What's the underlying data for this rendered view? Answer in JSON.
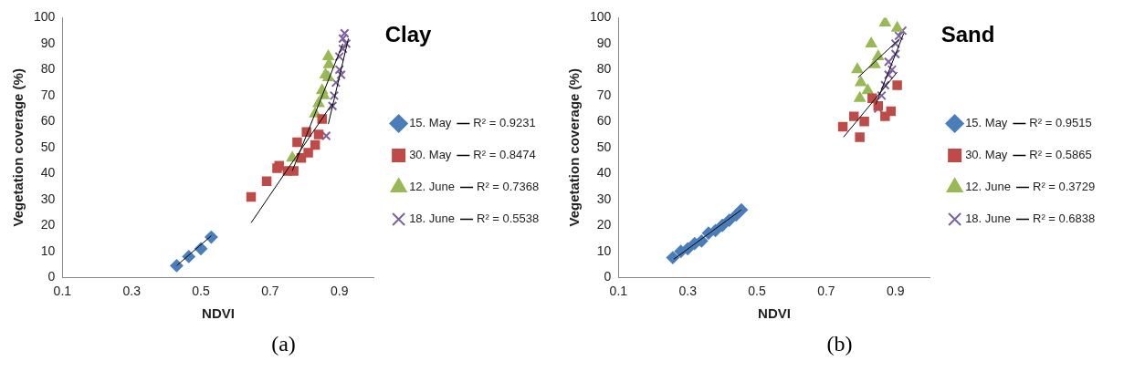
{
  "chart_data": [
    {
      "type": "scatter",
      "title": "Clay",
      "xlabel": "NDVI",
      "ylabel": "Vegetation coverage (%)",
      "xlim": [
        0.1,
        1.0
      ],
      "xticks": [
        0.1,
        0.3,
        0.5,
        0.7,
        0.9
      ],
      "ylim": [
        0,
        100
      ],
      "yticks": [
        0,
        10,
        20,
        30,
        40,
        50,
        60,
        70,
        80,
        90,
        100
      ],
      "grid": false,
      "legend": "right",
      "annotations": [
        "(a)"
      ],
      "series": [
        {
          "name": "15. May",
          "color": "#4a7ebb",
          "marker": "diamond",
          "x": [
            0.43,
            0.465,
            0.5,
            0.53
          ],
          "values": [
            4.5,
            8,
            11,
            15.5
          ]
        },
        {
          "name": "30. May",
          "color": "#be4b48",
          "marker": "square",
          "x": [
            0.645,
            0.69,
            0.72,
            0.726,
            0.75,
            0.768,
            0.778,
            0.79,
            0.805,
            0.81,
            0.83,
            0.84,
            0.85
          ],
          "values": [
            31,
            37,
            42,
            43,
            41,
            41,
            52,
            46,
            56,
            48,
            51,
            55,
            61
          ]
        },
        {
          "name": "12. June",
          "color": "#98b954",
          "marker": "triangle",
          "x": [
            0.764,
            0.83,
            0.84,
            0.85,
            0.855,
            0.86,
            0.868,
            0.87,
            0.868
          ],
          "values": [
            46,
            63,
            67,
            72,
            70,
            78,
            85,
            82,
            77
          ]
        },
        {
          "name": "18. June",
          "color": "#7d60a0",
          "marker": "cross",
          "x": [
            0.862,
            0.88,
            0.885,
            0.89,
            0.9,
            0.9,
            0.905,
            0.91,
            0.91,
            0.915,
            0.92
          ],
          "values": [
            54.5,
            66,
            70,
            75,
            80,
            85,
            78,
            88,
            92,
            94,
            90
          ]
        },
        {
          "name": "R² = 0.9231",
          "type": "line",
          "color": "#000000",
          "marker": "none",
          "x": [
            0.43,
            0.53
          ],
          "values": [
            4.5,
            16
          ]
        },
        {
          "name": "R² = 0.8474",
          "type": "line",
          "color": "#000000",
          "marker": "none",
          "x": [
            0.645,
            0.88
          ],
          "values": [
            21,
            67
          ]
        },
        {
          "name": "R² = 0.7368",
          "type": "line",
          "color": "#000000",
          "marker": "none",
          "x": [
            0.764,
            0.91
          ],
          "values": [
            41,
            90
          ]
        },
        {
          "name": "R² = 0.5538",
          "type": "line",
          "color": "#000000",
          "marker": "none",
          "x": [
            0.868,
            0.926
          ],
          "values": [
            59,
            92
          ]
        }
      ]
    },
    {
      "type": "scatter",
      "title": "Sand",
      "xlabel": "NDVI",
      "ylabel": "Vegetation coverage (%)",
      "xlim": [
        0.1,
        1.0
      ],
      "xticks": [
        0.1,
        0.3,
        0.5,
        0.7,
        0.9
      ],
      "ylim": [
        0,
        100
      ],
      "yticks": [
        0,
        10,
        20,
        30,
        40,
        50,
        60,
        70,
        80,
        90,
        100
      ],
      "grid": false,
      "legend": "right",
      "annotations": [
        "(b)"
      ],
      "series": [
        {
          "name": "15. May",
          "color": "#4a7ebb",
          "marker": "diamond",
          "x": [
            0.257,
            0.28,
            0.3,
            0.32,
            0.34,
            0.36,
            0.38,
            0.4,
            0.42,
            0.44,
            0.455
          ],
          "values": [
            7.6,
            10,
            11,
            13,
            14,
            17,
            18,
            20,
            22,
            24,
            26
          ]
        },
        {
          "name": "30. May",
          "color": "#be4b48",
          "marker": "square",
          "x": [
            0.748,
            0.78,
            0.797,
            0.81,
            0.833,
            0.85,
            0.87,
            0.887,
            0.905
          ],
          "values": [
            58,
            62,
            54,
            60,
            69,
            66,
            62,
            64,
            74
          ]
        },
        {
          "name": "12. June",
          "color": "#98b954",
          "marker": "triangle",
          "x": [
            0.79,
            0.797,
            0.8,
            0.82,
            0.83,
            0.85,
            0.87,
            0.905,
            0.84
          ],
          "values": [
            80,
            69,
            75,
            72,
            90,
            85,
            98,
            96,
            82
          ]
        },
        {
          "name": "18. June",
          "color": "#7d60a0",
          "marker": "cross",
          "x": [
            0.85,
            0.86,
            0.87,
            0.88,
            0.88,
            0.89,
            0.9,
            0.9,
            0.91,
            0.92
          ],
          "values": [
            65,
            70,
            74,
            78,
            83,
            80,
            86,
            90,
            93,
            95
          ]
        },
        {
          "name": "R² = 0.9515",
          "type": "line",
          "color": "#000000",
          "marker": "none",
          "x": [
            0.26,
            0.455
          ],
          "values": [
            7,
            26
          ]
        },
        {
          "name": "R² = 0.5865",
          "type": "line",
          "color": "#000000",
          "marker": "none",
          "x": [
            0.75,
            0.905
          ],
          "values": [
            54,
            79
          ]
        },
        {
          "name": "R² = 0.3729",
          "type": "line",
          "color": "#000000",
          "marker": "none",
          "x": [
            0.792,
            0.913
          ],
          "values": [
            77,
            92
          ]
        },
        {
          "name": "R² = 0.6838",
          "type": "line",
          "color": "#000000",
          "marker": "none",
          "x": [
            0.843,
            0.924
          ],
          "values": [
            66.6,
            94
          ]
        }
      ]
    }
  ]
}
